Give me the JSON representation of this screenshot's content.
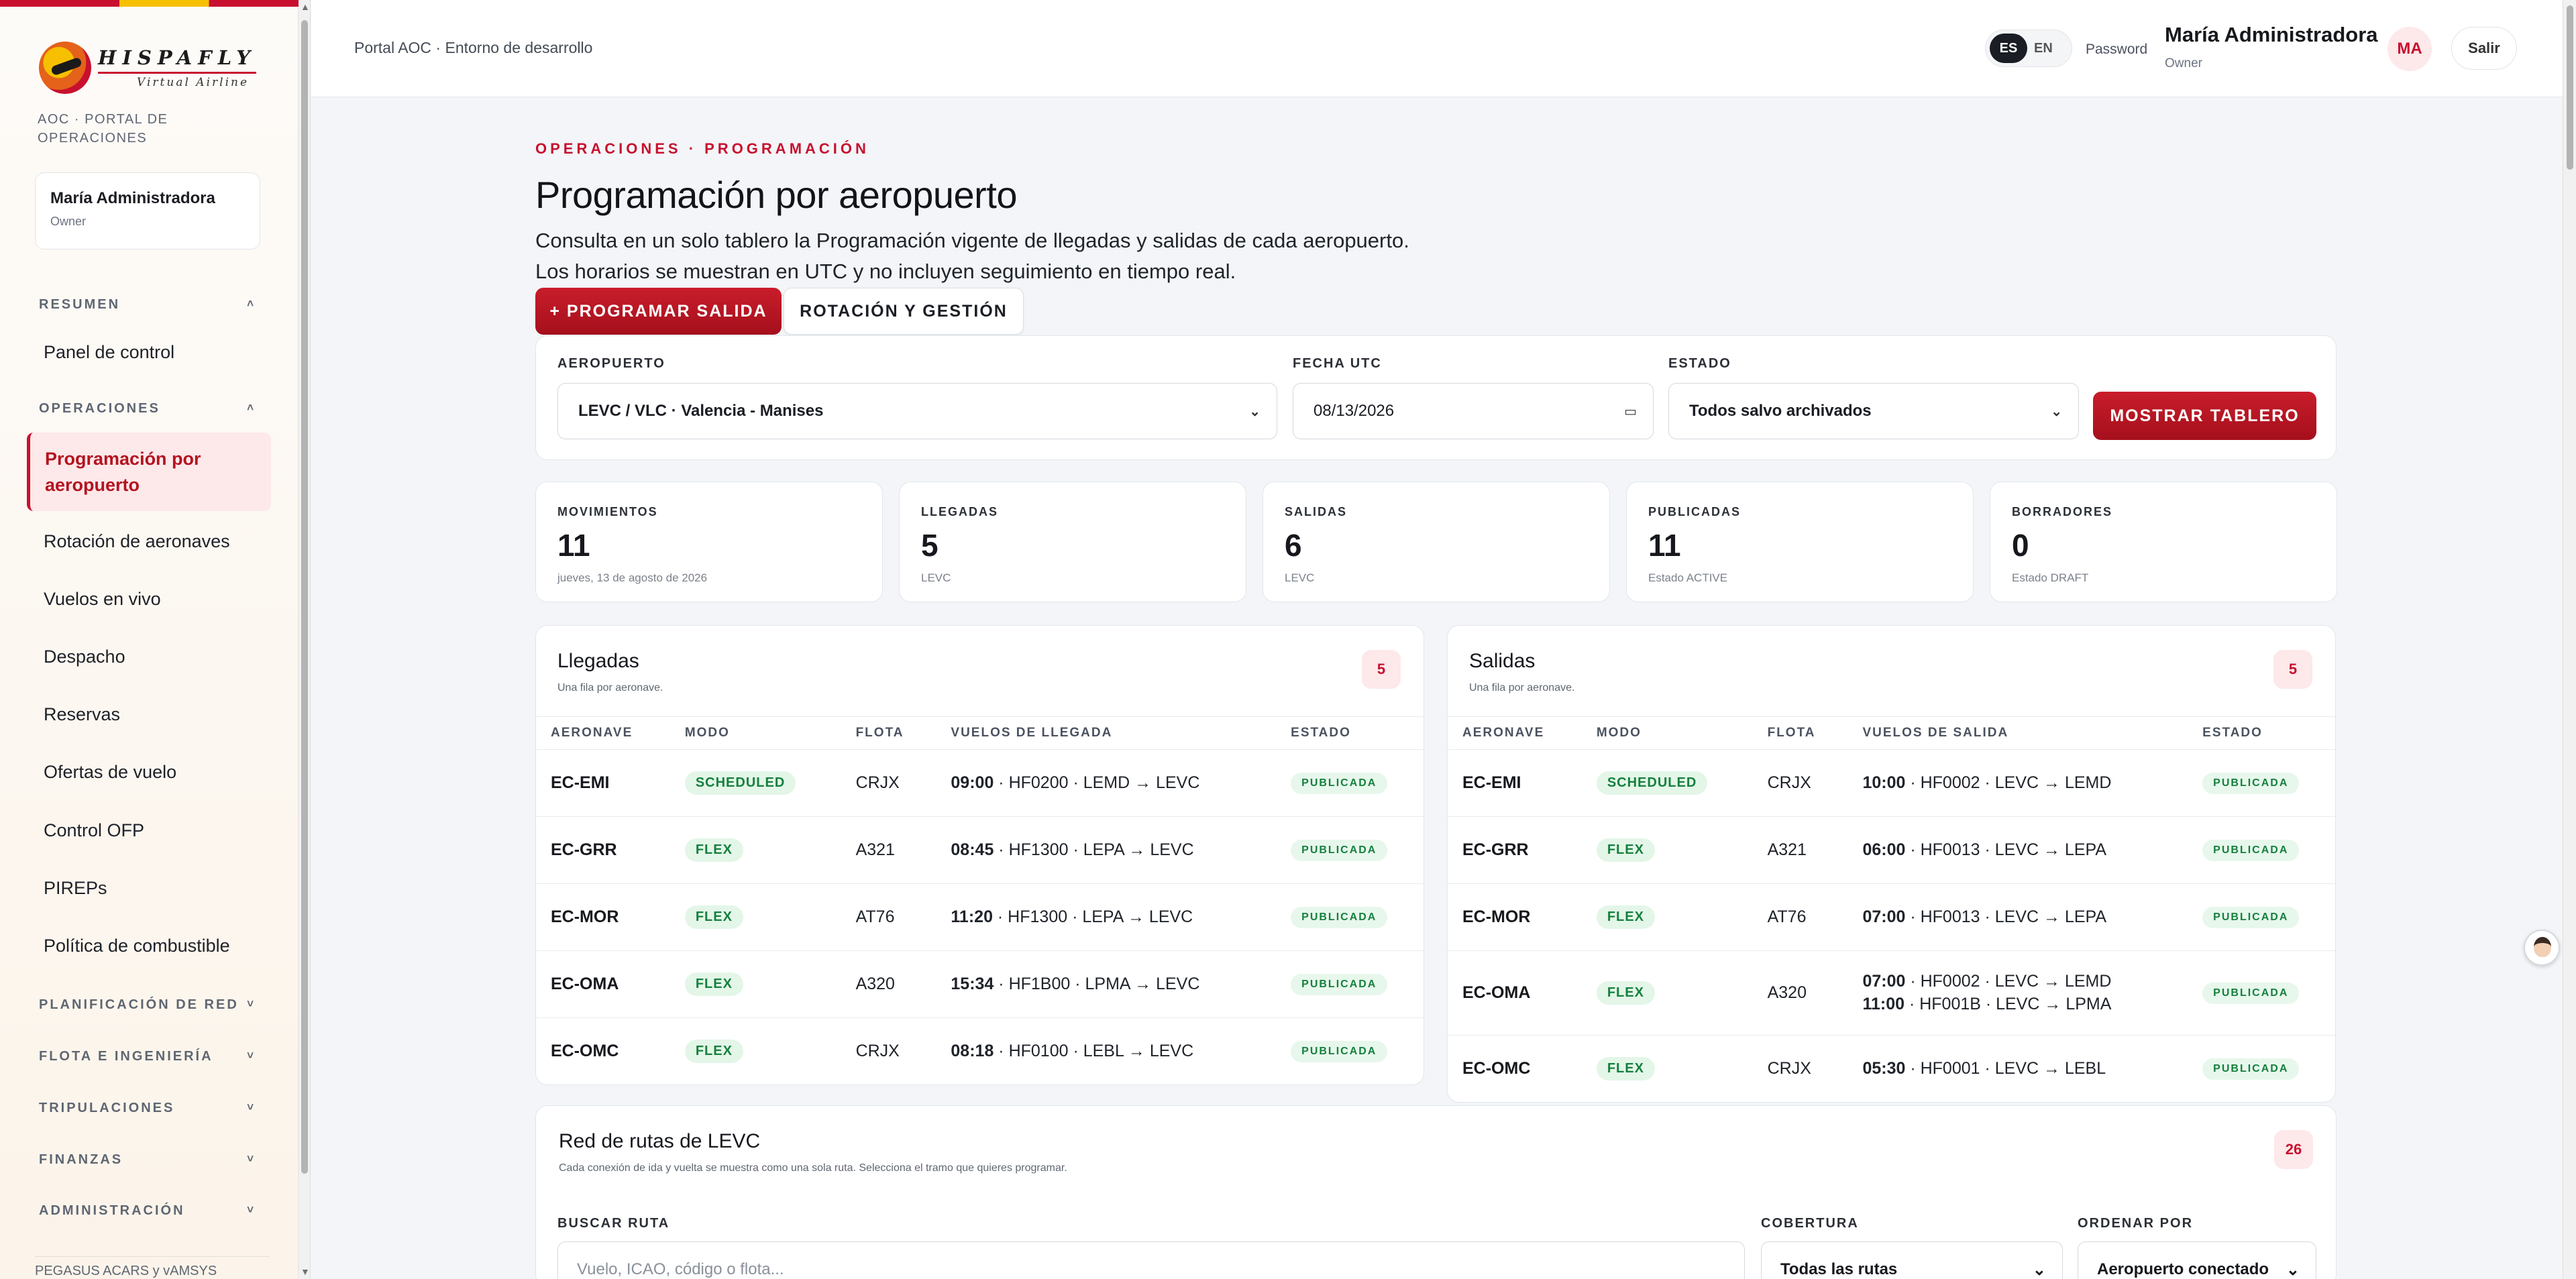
{
  "sidebar": {
    "brand_name": "HISPAFLY",
    "brand_sub": "Virtual Airline",
    "portal_label": "AOC · PORTAL DE OPERACIONES",
    "user_name": "María Administradora",
    "user_role": "Owner",
    "sections": {
      "resumen": "RESUMEN",
      "operaciones": "OPERACIONES",
      "planificacion": "PLANIFICACIÓN DE RED",
      "flota": "FLOTA E INGENIERÍA",
      "tripulaciones": "TRIPULACIONES",
      "finanzas": "FINANZAS",
      "administracion": "ADMINISTRACIÓN"
    },
    "items": {
      "panel": "Panel de control",
      "programacion": "Programación por aeropuerto",
      "rotacion": "Rotación de aeronaves",
      "vuelos_vivo": "Vuelos en vivo",
      "despacho": "Despacho",
      "reservas": "Reservas",
      "ofertas": "Ofertas de vuelo",
      "ofp": "Control OFP",
      "pireps": "PIREPs",
      "combustible": "Política de combustible"
    },
    "footer": "PEGASUS ACARS y vAMSYS"
  },
  "topbar": {
    "env": "Portal AOC · Entorno de desarrollo",
    "lang_es": "ES",
    "lang_en": "EN",
    "password": "Password",
    "user_name": "María Administradora",
    "user_role": "Owner",
    "avatar": "MA",
    "logout": "Salir"
  },
  "page": {
    "eyebrow": "OPERACIONES · PROGRAMACIÓN",
    "title": "Programación por aeropuerto",
    "description": "Consulta en un solo tablero la Programación vigente de llegadas y salidas de cada aeropuerto. Los horarios se muestran en UTC y no incluyen seguimiento en tiempo real.",
    "btn_schedule": "+ PROGRAMAR SALIDA",
    "btn_rotation": "ROTACIÓN Y GESTIÓN"
  },
  "filters": {
    "airport_label": "AEROPUERTO",
    "airport_value": "LEVC / VLC · Valencia - Manises",
    "date_label": "FECHA UTC",
    "date_value": "08/13/2026",
    "status_label": "ESTADO",
    "status_value": "Todos salvo archivados",
    "show_button": "MOSTRAR TABLERO"
  },
  "stats": [
    {
      "label": "MOVIMIENTOS",
      "value": "11",
      "sub": "jueves, 13 de agosto de 2026"
    },
    {
      "label": "LLEGADAS",
      "value": "5",
      "sub": "LEVC"
    },
    {
      "label": "SALIDAS",
      "value": "6",
      "sub": "LEVC"
    },
    {
      "label": "PUBLICADAS",
      "value": "11",
      "sub": "Estado ACTIVE"
    },
    {
      "label": "BORRADORES",
      "value": "0",
      "sub": "Estado DRAFT"
    }
  ],
  "arrivals": {
    "title": "Llegadas",
    "subtitle": "Una fila por aeronave.",
    "count": "5",
    "columns": [
      "AERONAVE",
      "MODO",
      "FLOTA",
      "VUELOS DE LLEGADA",
      "ESTADO"
    ],
    "rows": [
      {
        "ac": "EC-EMI",
        "mode": "SCHEDULED",
        "fleet": "CRJX",
        "legs": [
          {
            "time": "09:00",
            "route": " · HF0200 · LEMD → LEVC"
          }
        ],
        "status": "PUBLICADA"
      },
      {
        "ac": "EC-GRR",
        "mode": "FLEX",
        "fleet": "A321",
        "legs": [
          {
            "time": "08:45",
            "route": " · HF1300 · LEPA → LEVC"
          }
        ],
        "status": "PUBLICADA"
      },
      {
        "ac": "EC-MOR",
        "mode": "FLEX",
        "fleet": "AT76",
        "legs": [
          {
            "time": "11:20",
            "route": " · HF1300 · LEPA → LEVC"
          }
        ],
        "status": "PUBLICADA"
      },
      {
        "ac": "EC-OMA",
        "mode": "FLEX",
        "fleet": "A320",
        "legs": [
          {
            "time": "15:34",
            "route": " · HF1B00 · LPMA → LEVC"
          }
        ],
        "status": "PUBLICADA"
      },
      {
        "ac": "EC-OMC",
        "mode": "FLEX",
        "fleet": "CRJX",
        "legs": [
          {
            "time": "08:18",
            "route": " · HF0100 · LEBL → LEVC"
          }
        ],
        "status": "PUBLICADA"
      }
    ]
  },
  "departures": {
    "title": "Salidas",
    "subtitle": "Una fila por aeronave.",
    "count": "5",
    "columns": [
      "AERONAVE",
      "MODO",
      "FLOTA",
      "VUELOS DE SALIDA",
      "ESTADO"
    ],
    "rows": [
      {
        "ac": "EC-EMI",
        "mode": "SCHEDULED",
        "fleet": "CRJX",
        "legs": [
          {
            "time": "10:00",
            "route": " · HF0002 · LEVC → LEMD"
          }
        ],
        "status": "PUBLICADA"
      },
      {
        "ac": "EC-GRR",
        "mode": "FLEX",
        "fleet": "A321",
        "legs": [
          {
            "time": "06:00",
            "route": " · HF0013 · LEVC → LEPA"
          }
        ],
        "status": "PUBLICADA"
      },
      {
        "ac": "EC-MOR",
        "mode": "FLEX",
        "fleet": "AT76",
        "legs": [
          {
            "time": "07:00",
            "route": " · HF0013 · LEVC → LEPA"
          }
        ],
        "status": "PUBLICADA"
      },
      {
        "ac": "EC-OMA",
        "mode": "FLEX",
        "fleet": "A320",
        "legs": [
          {
            "time": "07:00",
            "route": " · HF0002 · LEVC → LEMD"
          },
          {
            "time": "11:00",
            "route": " · HF001B · LEVC → LPMA"
          }
        ],
        "status": "PUBLICADA"
      },
      {
        "ac": "EC-OMC",
        "mode": "FLEX",
        "fleet": "CRJX",
        "legs": [
          {
            "time": "05:30",
            "route": " · HF0001 · LEVC → LEBL"
          }
        ],
        "status": "PUBLICADA"
      }
    ]
  },
  "routes": {
    "title": "Red de rutas de LEVC",
    "subtitle": "Cada conexión de ida y vuelta se muestra como una sola ruta. Selecciona el tramo que quieres programar.",
    "count": "26",
    "search_label": "BUSCAR RUTA",
    "search_placeholder": "Vuelo, ICAO, código o flota...",
    "coverage_label": "COBERTURA",
    "coverage_value": "Todas las rutas",
    "sort_label": "ORDENAR POR",
    "sort_value": "Aeropuerto conectado"
  },
  "colors": {
    "accent": "#c8102e",
    "success": "#15803d"
  }
}
